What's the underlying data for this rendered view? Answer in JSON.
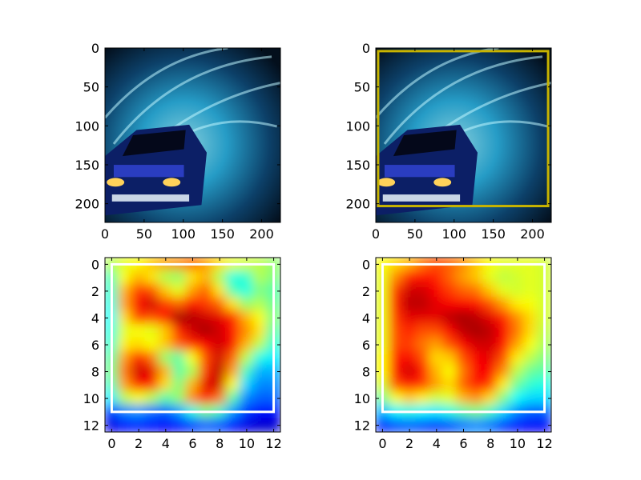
{
  "chart_data": [
    {
      "type": "image",
      "panel": "top-left",
      "content": "race car photo (blue flames)",
      "xlim": [
        0,
        224
      ],
      "ylim": [
        224,
        0
      ],
      "xticks": [
        0,
        50,
        100,
        150,
        200
      ],
      "yticks": [
        0,
        50,
        100,
        150,
        200
      ],
      "box": null
    },
    {
      "type": "image",
      "panel": "top-right",
      "content": "race car photo (blue flames)",
      "xlim": [
        0,
        224
      ],
      "ylim": [
        224,
        0
      ],
      "xticks": [
        0,
        50,
        100,
        150,
        200
      ],
      "yticks": [
        0,
        50,
        100,
        150,
        200
      ],
      "box": {
        "x0": 3,
        "y0": 4,
        "x1": 220,
        "y1": 203,
        "color": "#c8b400"
      }
    },
    {
      "type": "heatmap",
      "panel": "bottom-left",
      "colormap": "jet",
      "xlim": [
        -0.5,
        12.5
      ],
      "ylim": [
        12.5,
        -0.5
      ],
      "xticks": [
        0,
        2,
        4,
        6,
        8,
        10,
        12
      ],
      "yticks": [
        0,
        2,
        4,
        6,
        8,
        10,
        12
      ],
      "box": {
        "x0": 0,
        "y0": 0,
        "x1": 12,
        "y1": 11,
        "color": "#ffffff"
      },
      "values": [
        [
          0.55,
          0.6,
          0.62,
          0.68,
          0.72,
          0.74,
          0.78,
          0.72,
          0.66,
          0.6,
          0.58,
          0.56,
          0.52
        ],
        [
          0.45,
          0.62,
          0.7,
          0.65,
          0.55,
          0.52,
          0.65,
          0.7,
          0.55,
          0.4,
          0.42,
          0.55,
          0.5
        ],
        [
          0.42,
          0.7,
          0.82,
          0.8,
          0.68,
          0.6,
          0.72,
          0.78,
          0.65,
          0.45,
          0.4,
          0.5,
          0.46
        ],
        [
          0.4,
          0.72,
          0.88,
          0.92,
          0.82,
          0.78,
          0.86,
          0.82,
          0.78,
          0.65,
          0.52,
          0.55,
          0.48
        ],
        [
          0.38,
          0.66,
          0.82,
          0.8,
          0.86,
          0.96,
          0.95,
          0.92,
          0.9,
          0.84,
          0.7,
          0.62,
          0.5
        ],
        [
          0.4,
          0.6,
          0.62,
          0.6,
          0.68,
          0.84,
          0.92,
          0.96,
          0.92,
          0.86,
          0.74,
          0.65,
          0.46
        ],
        [
          0.42,
          0.64,
          0.66,
          0.62,
          0.68,
          0.78,
          0.84,
          0.88,
          0.92,
          0.88,
          0.7,
          0.56,
          0.42
        ],
        [
          0.46,
          0.72,
          0.86,
          0.76,
          0.52,
          0.46,
          0.62,
          0.8,
          0.92,
          0.78,
          0.56,
          0.4,
          0.36
        ],
        [
          0.48,
          0.76,
          0.92,
          0.9,
          0.7,
          0.46,
          0.54,
          0.82,
          0.94,
          0.72,
          0.44,
          0.3,
          0.3
        ],
        [
          0.44,
          0.72,
          0.86,
          0.84,
          0.66,
          0.5,
          0.7,
          0.9,
          0.92,
          0.62,
          0.34,
          0.26,
          0.26
        ],
        [
          0.36,
          0.56,
          0.62,
          0.56,
          0.46,
          0.52,
          0.74,
          0.86,
          0.76,
          0.46,
          0.26,
          0.22,
          0.22
        ],
        [
          0.18,
          0.26,
          0.28,
          0.24,
          0.22,
          0.28,
          0.4,
          0.5,
          0.44,
          0.28,
          0.18,
          0.14,
          0.14
        ],
        [
          0.1,
          0.14,
          0.16,
          0.14,
          0.12,
          0.14,
          0.18,
          0.22,
          0.2,
          0.14,
          0.1,
          0.08,
          0.08
        ]
      ]
    },
    {
      "type": "heatmap",
      "panel": "bottom-right",
      "colormap": "jet",
      "xlim": [
        -0.5,
        12.5
      ],
      "ylim": [
        12.5,
        -0.5
      ],
      "xticks": [
        0,
        2,
        4,
        6,
        8,
        10,
        12
      ],
      "yticks": [
        0,
        2,
        4,
        6,
        8,
        10,
        12
      ],
      "box": {
        "x0": 0,
        "y0": 0,
        "x1": 12,
        "y1": 11,
        "color": "#ffffff"
      },
      "values": [
        [
          0.62,
          0.66,
          0.7,
          0.76,
          0.8,
          0.78,
          0.74,
          0.68,
          0.62,
          0.6,
          0.6,
          0.6,
          0.58
        ],
        [
          0.6,
          0.74,
          0.84,
          0.86,
          0.84,
          0.78,
          0.72,
          0.68,
          0.6,
          0.56,
          0.58,
          0.6,
          0.58
        ],
        [
          0.6,
          0.82,
          0.92,
          0.92,
          0.88,
          0.82,
          0.78,
          0.76,
          0.68,
          0.6,
          0.58,
          0.6,
          0.58
        ],
        [
          0.6,
          0.84,
          0.94,
          0.94,
          0.9,
          0.88,
          0.88,
          0.86,
          0.8,
          0.72,
          0.64,
          0.62,
          0.58
        ],
        [
          0.6,
          0.82,
          0.9,
          0.9,
          0.9,
          0.94,
          0.96,
          0.94,
          0.9,
          0.84,
          0.74,
          0.66,
          0.58
        ],
        [
          0.6,
          0.8,
          0.84,
          0.8,
          0.8,
          0.88,
          0.94,
          0.96,
          0.94,
          0.88,
          0.76,
          0.66,
          0.56
        ],
        [
          0.6,
          0.8,
          0.82,
          0.76,
          0.72,
          0.8,
          0.88,
          0.92,
          0.92,
          0.86,
          0.72,
          0.62,
          0.54
        ],
        [
          0.62,
          0.84,
          0.88,
          0.8,
          0.66,
          0.68,
          0.8,
          0.88,
          0.9,
          0.8,
          0.64,
          0.56,
          0.5
        ],
        [
          0.62,
          0.86,
          0.92,
          0.86,
          0.7,
          0.62,
          0.76,
          0.88,
          0.88,
          0.74,
          0.56,
          0.48,
          0.46
        ],
        [
          0.58,
          0.8,
          0.86,
          0.82,
          0.72,
          0.66,
          0.78,
          0.86,
          0.82,
          0.64,
          0.48,
          0.42,
          0.4
        ],
        [
          0.48,
          0.62,
          0.68,
          0.64,
          0.58,
          0.6,
          0.7,
          0.74,
          0.66,
          0.5,
          0.38,
          0.34,
          0.34
        ],
        [
          0.3,
          0.38,
          0.4,
          0.38,
          0.36,
          0.4,
          0.46,
          0.5,
          0.44,
          0.34,
          0.26,
          0.22,
          0.22
        ],
        [
          0.16,
          0.2,
          0.22,
          0.2,
          0.18,
          0.2,
          0.24,
          0.26,
          0.24,
          0.18,
          0.14,
          0.12,
          0.12
        ]
      ]
    }
  ]
}
